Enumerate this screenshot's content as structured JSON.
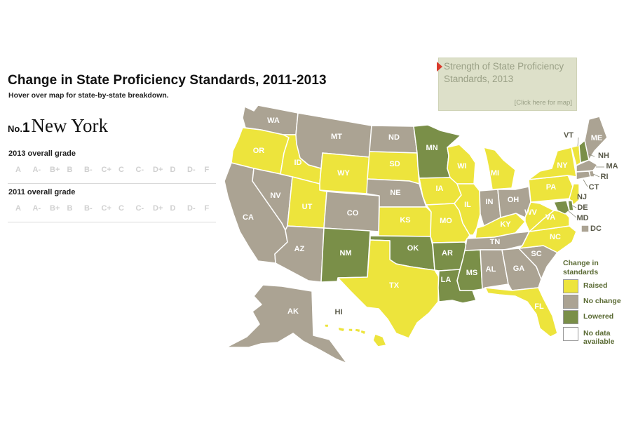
{
  "header": {
    "title": "Change in State Proficiency Standards, 2011-2013",
    "subtitle": "Hover over map for state-by-state breakdown."
  },
  "selected": {
    "prefix": "No.",
    "rank": "1",
    "state_name": "New York"
  },
  "grades_2013": {
    "label": "2013 overall grade",
    "scale": [
      "A",
      "A-",
      "B+",
      "B",
      "B-",
      "C+",
      "C",
      "C-",
      "D+",
      "D",
      "D-",
      "F"
    ]
  },
  "grades_2011": {
    "label": "2011 overall grade",
    "scale": [
      "A",
      "A-",
      "B+",
      "B",
      "B-",
      "C+",
      "C",
      "C-",
      "D+",
      "D",
      "D-",
      "F"
    ]
  },
  "strength_link": {
    "text": "Strength of State Proficiency Standards, 2013",
    "action": "[Click here for map]"
  },
  "legend": {
    "title": "Change in standards",
    "items": [
      {
        "label": "Raised",
        "color": "#ede43c"
      },
      {
        "label": "No change",
        "color": "#aba393"
      },
      {
        "label": "Lowered",
        "color": "#7a8f48"
      },
      {
        "label": "No data available",
        "color": "#ffffff"
      }
    ]
  },
  "colors": {
    "raised": "#ede43c",
    "no_change": "#aba393",
    "lowered": "#7a8f48",
    "border": "#ffffff"
  },
  "states": {
    "WA": "no_change",
    "OR": "raised",
    "CA": "no_change",
    "NV": "no_change",
    "ID": "raised",
    "MT": "no_change",
    "WY": "raised",
    "UT": "raised",
    "AZ": "no_change",
    "CO": "no_change",
    "NM": "lowered",
    "ND": "no_change",
    "SD": "raised",
    "NE": "no_change",
    "KS": "raised",
    "OK": "lowered",
    "TX": "raised",
    "MN": "lowered",
    "IA": "raised",
    "MO": "raised",
    "AR": "lowered",
    "LA": "lowered",
    "WI": "raised",
    "IL": "raised",
    "MS": "lowered",
    "MI": "raised",
    "IN": "no_change",
    "KY": "raised",
    "TN": "no_change",
    "AL": "no_change",
    "OH": "no_change",
    "GA": "no_change",
    "FL": "raised",
    "SC": "no_change",
    "NC": "raised",
    "VA": "raised",
    "WV": "raised",
    "PA": "raised",
    "NY": "raised",
    "VT": "raised",
    "NH": "lowered",
    "ME": "no_change",
    "MA": "no_change",
    "RI": "no_change",
    "CT": "no_change",
    "NJ": "raised",
    "DE": "lowered",
    "MD": "lowered",
    "DC": "no_change",
    "AK": "no_change",
    "HI": "raised"
  },
  "state_labels": {
    "WA": "WA",
    "OR": "OR",
    "CA": "CA",
    "NV": "NV",
    "ID": "ID",
    "MT": "MT",
    "WY": "WY",
    "UT": "UT",
    "AZ": "AZ",
    "CO": "CO",
    "NM": "NM",
    "ND": "ND",
    "SD": "SD",
    "NE": "NE",
    "KS": "KS",
    "OK": "OK",
    "TX": "TX",
    "MN": "MN",
    "IA": "IA",
    "MO": "MO",
    "AR": "AR",
    "LA": "LA",
    "WI": "WI",
    "IL": "IL",
    "MS": "MS",
    "MI": "MI",
    "IN": "IN",
    "KY": "KY",
    "TN": "TN",
    "AL": "AL",
    "OH": "OH",
    "GA": "GA",
    "FL": "FL",
    "SC": "SC",
    "NC": "NC",
    "VA": "VA",
    "WV": "WV",
    "PA": "PA",
    "NY": "NY",
    "VT": "VT",
    "NH": "NH",
    "ME": "ME",
    "MA": "MA",
    "RI": "RI",
    "CT": "CT",
    "NJ": "NJ",
    "DE": "DE",
    "MD": "MD",
    "DC": "DC",
    "AK": "AK",
    "HI": "HI"
  }
}
